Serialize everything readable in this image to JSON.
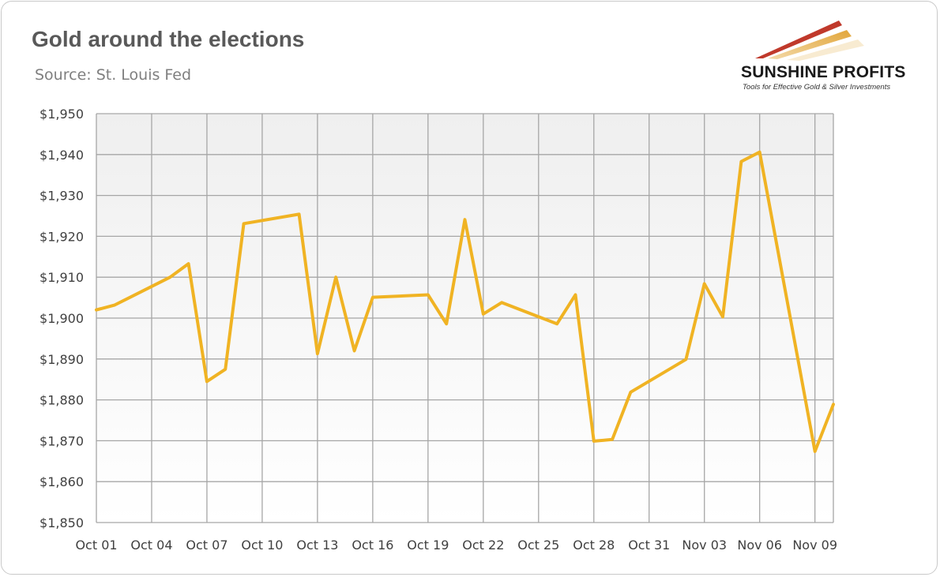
{
  "header": {
    "title": "Gold around the elections",
    "subtitle": "Source: St. Louis Fed"
  },
  "logo": {
    "name": "SUNSHINE PROFITS",
    "tagline": "Tools for Effective Gold & Silver Investments"
  },
  "colors": {
    "line": "#F0B323",
    "grid": "#a6a6a6",
    "plot_bg_top": "#efefef",
    "plot_bg_bottom": "#ffffff"
  },
  "chart_data": {
    "type": "line",
    "x_tick_labels": [
      "Oct 01",
      "Oct 04",
      "Oct 07",
      "Oct 10",
      "Oct 13",
      "Oct 16",
      "Oct 19",
      "Oct 22",
      "Oct 25",
      "Oct 28",
      "Oct 31",
      "Nov 03",
      "Nov 06",
      "Nov 09"
    ],
    "y_tick_labels": [
      "$1,850",
      "$1,860",
      "$1,870",
      "$1,880",
      "$1,890",
      "$1,900",
      "$1,910",
      "$1,920",
      "$1,930",
      "$1,940",
      "$1,950"
    ],
    "ylim": [
      1850,
      1950
    ],
    "grid": true,
    "series": [
      {
        "values": [
          {
            "x": "Oct 01",
            "y": 1902.0
          },
          {
            "x": "Oct 02",
            "y": 1903.2
          },
          {
            "x": "Oct 05",
            "y": 1910.0
          },
          {
            "x": "Oct 06",
            "y": 1913.3
          },
          {
            "x": "Oct 07",
            "y": 1884.5
          },
          {
            "x": "Oct 08",
            "y": 1887.5
          },
          {
            "x": "Oct 09",
            "y": 1923.1
          },
          {
            "x": "Oct 12",
            "y": 1925.4
          },
          {
            "x": "Oct 13",
            "y": 1891.3
          },
          {
            "x": "Oct 14",
            "y": 1910.0
          },
          {
            "x": "Oct 15",
            "y": 1892.0
          },
          {
            "x": "Oct 16",
            "y": 1905.1
          },
          {
            "x": "Oct 19",
            "y": 1905.7
          },
          {
            "x": "Oct 20",
            "y": 1898.6
          },
          {
            "x": "Oct 21",
            "y": 1924.1
          },
          {
            "x": "Oct 22",
            "y": 1901.0
          },
          {
            "x": "Oct 23",
            "y": 1903.8
          },
          {
            "x": "Oct 26",
            "y": 1898.6
          },
          {
            "x": "Oct 27",
            "y": 1905.7
          },
          {
            "x": "Oct 28",
            "y": 1869.9
          },
          {
            "x": "Oct 29",
            "y": 1870.3
          },
          {
            "x": "Oct 30",
            "y": 1881.9
          },
          {
            "x": "Nov 02",
            "y": 1889.9
          },
          {
            "x": "Nov 03",
            "y": 1908.4
          },
          {
            "x": "Nov 04",
            "y": 1900.3
          },
          {
            "x": "Nov 05",
            "y": 1938.3
          },
          {
            "x": "Nov 06",
            "y": 1940.6
          },
          {
            "x": "Nov 09",
            "y": 1867.4
          },
          {
            "x": "Nov 10",
            "y": 1878.9
          }
        ]
      }
    ]
  }
}
